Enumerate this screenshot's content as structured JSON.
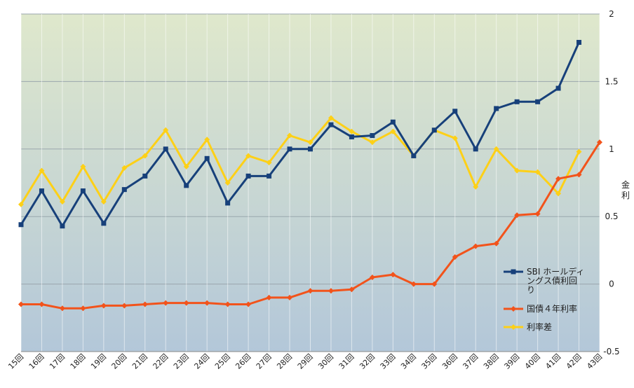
{
  "chart_data": {
    "type": "line",
    "title": "",
    "xlabel": "",
    "ylabel": "金利",
    "ylim": [
      -0.5,
      2
    ],
    "yticks": [
      "-0.5",
      "0",
      "0.5",
      "1",
      "1.5",
      "2"
    ],
    "grid": true,
    "legend_position": "right",
    "categories": [
      "15回",
      "16回",
      "17回",
      "18回",
      "19回",
      "20回",
      "21回",
      "22回",
      "23回",
      "24回",
      "25回",
      "26回",
      "27回",
      "28回",
      "29回",
      "30回",
      "31回",
      "32回",
      "33回",
      "34回",
      "35回",
      "36回",
      "37回",
      "38回",
      "39回",
      "40回",
      "41回",
      "42回",
      "43回"
    ],
    "series": [
      {
        "name": "SBI ホールディングス債利回り",
        "color": "#17407a",
        "marker": "square",
        "values": [
          0.44,
          0.69,
          0.43,
          0.69,
          0.45,
          0.7,
          0.8,
          1.0,
          0.73,
          0.93,
          0.6,
          0.8,
          0.8,
          1.0,
          1.0,
          1.18,
          1.09,
          1.1,
          1.2,
          0.95,
          1.14,
          1.28,
          1.0,
          1.3,
          1.35,
          1.35,
          1.45,
          1.79,
          null
        ]
      },
      {
        "name": "国債４年利率",
        "color": "#f2531b",
        "marker": "diamond",
        "values": [
          -0.15,
          -0.15,
          -0.18,
          -0.18,
          -0.16,
          -0.16,
          -0.15,
          -0.14,
          -0.14,
          -0.14,
          -0.15,
          -0.15,
          -0.1,
          -0.1,
          -0.05,
          -0.05,
          -0.04,
          0.05,
          0.07,
          0.0,
          0.0,
          0.2,
          0.28,
          0.3,
          0.51,
          0.52,
          0.78,
          0.81,
          1.05
        ]
      },
      {
        "name": "利率差",
        "color": "#fdd017",
        "marker": "diamond",
        "values": [
          0.59,
          0.84,
          0.61,
          0.87,
          0.61,
          0.86,
          0.95,
          1.14,
          0.87,
          1.07,
          0.75,
          0.95,
          0.9,
          1.1,
          1.05,
          1.23,
          1.13,
          1.05,
          1.13,
          0.95,
          1.14,
          1.08,
          0.72,
          1.0,
          0.84,
          0.83,
          0.67,
          0.98,
          null
        ]
      }
    ]
  },
  "legend": {
    "entries": [
      {
        "lines": [
          "SBI ホールディ",
          "ングス債利回",
          "り"
        ]
      },
      {
        "lines": [
          "国債４年利率"
        ]
      },
      {
        "lines": [
          "利率差"
        ]
      }
    ]
  }
}
